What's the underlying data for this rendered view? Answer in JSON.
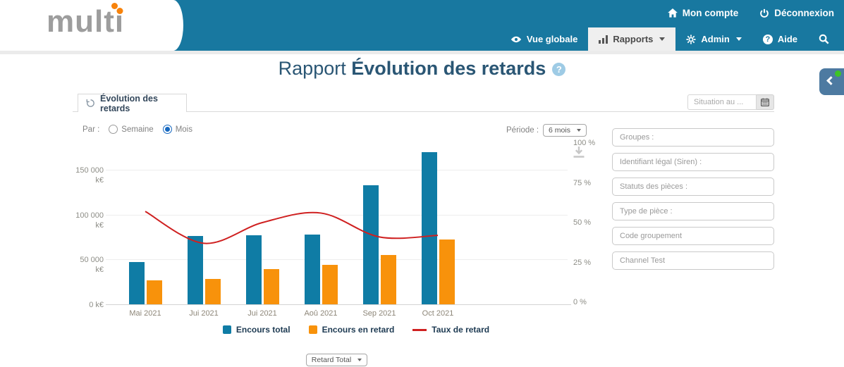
{
  "brand": {
    "name_part1": "mul",
    "name_part2": "t",
    "name_part3": "i"
  },
  "nav": {
    "top": [
      {
        "label": "Mon compte"
      },
      {
        "label": "Déconnexion"
      }
    ],
    "items": [
      {
        "label": "Vue globale"
      },
      {
        "label": "Rapports"
      },
      {
        "label": "Admin"
      },
      {
        "label": "Aide"
      }
    ]
  },
  "page": {
    "title_prefix": "Rapport",
    "title_main": "Évolution des retards",
    "help_glyph": "?"
  },
  "tabs": {
    "active": "Évolution des retards"
  },
  "controls": {
    "group_by_label": "Par :",
    "radio_week": "Semaine",
    "radio_month": "Mois",
    "selected_radio": "Mois",
    "period_label": "Période :",
    "period_value": "6 mois",
    "situation_placeholder": "Situation au ...",
    "bottom_select_value": "Retard Total"
  },
  "filters": [
    {
      "label": "Groupes :"
    },
    {
      "label": "Identifiant légal (Siren) :"
    },
    {
      "label": "Statuts des pièces :"
    },
    {
      "label": "Type de pièce :"
    },
    {
      "label": "Code groupement"
    },
    {
      "label": "Channel Test"
    }
  ],
  "chart_data": {
    "type": "bar",
    "title": "Rapport Évolution des retards",
    "categories": [
      "Mai 2021",
      "Jui 2021",
      "Jui 2021",
      "Aoû 2021",
      "Sep 2021",
      "Oct 2021"
    ],
    "series": [
      {
        "name": "Encours total",
        "type": "bar",
        "unit": "k€",
        "color": "#0f7ca5",
        "values": [
          47000,
          76000,
          77000,
          78000,
          133000,
          170000
        ]
      },
      {
        "name": "Encours en retard",
        "type": "bar",
        "unit": "k€",
        "color": "#f8920b",
        "values": [
          27000,
          28000,
          39000,
          44000,
          55000,
          72000
        ]
      },
      {
        "name": "Taux de retard",
        "type": "line",
        "unit": "%",
        "color": "#cf2020",
        "axis": "right",
        "values": [
          57,
          37,
          50,
          56,
          41,
          42
        ]
      }
    ],
    "left_axis": {
      "ticks_keur": [
        0,
        50000,
        100000,
        150000
      ],
      "tick_labels": [
        "0 k€",
        "50 000 k€",
        "100 000 k€",
        "150 000 k€"
      ],
      "max": 150000
    },
    "right_axis": {
      "ticks_pct": [
        0,
        25,
        50,
        75,
        100
      ],
      "tick_labels": [
        "0 %",
        "25 %",
        "50 %",
        "75 %",
        "100 %"
      ],
      "max": 100
    },
    "legend_position": "bottom",
    "grid": true
  }
}
